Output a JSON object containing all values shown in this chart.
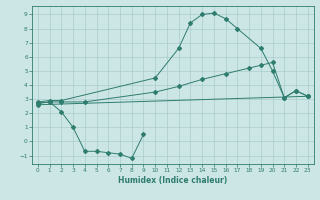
{
  "line1_x": [
    0,
    1,
    2,
    10,
    12,
    13,
    14,
    15,
    16,
    17,
    19,
    20,
    21,
    22,
    23
  ],
  "line1_y": [
    2.8,
    2.9,
    2.9,
    4.5,
    6.6,
    8.4,
    9.0,
    9.1,
    8.7,
    8.0,
    6.6,
    5.0,
    3.1,
    3.6,
    3.2
  ],
  "line2_x": [
    0,
    1,
    2,
    4,
    10,
    12,
    14,
    16,
    18,
    19,
    20,
    21,
    22,
    23
  ],
  "line2_y": [
    2.7,
    2.8,
    2.8,
    2.8,
    3.5,
    3.9,
    4.4,
    4.8,
    5.2,
    5.4,
    5.6,
    3.1,
    3.6,
    3.2
  ],
  "line3_x": [
    0,
    23
  ],
  "line3_y": [
    2.6,
    3.2
  ],
  "line4_x": [
    0,
    1,
    2,
    3,
    4,
    5,
    6,
    7,
    8,
    9
  ],
  "line4_y": [
    2.7,
    2.8,
    2.1,
    1.0,
    -0.7,
    -0.7,
    -0.8,
    -0.9,
    -1.2,
    0.5
  ],
  "line_color": "#2e7d6e",
  "marker": "D",
  "marker_size": 2,
  "bg_color": "#cce5e5",
  "grid_color": "#aacccc",
  "xlabel": "Humidex (Indice chaleur)",
  "xlim": [
    -0.5,
    23.5
  ],
  "ylim": [
    -1.6,
    9.6
  ],
  "xticks": [
    0,
    1,
    2,
    3,
    4,
    5,
    6,
    7,
    8,
    9,
    10,
    11,
    12,
    13,
    14,
    15,
    16,
    17,
    18,
    19,
    20,
    21,
    22,
    23
  ],
  "yticks": [
    -1,
    0,
    1,
    2,
    3,
    4,
    5,
    6,
    7,
    8,
    9
  ]
}
